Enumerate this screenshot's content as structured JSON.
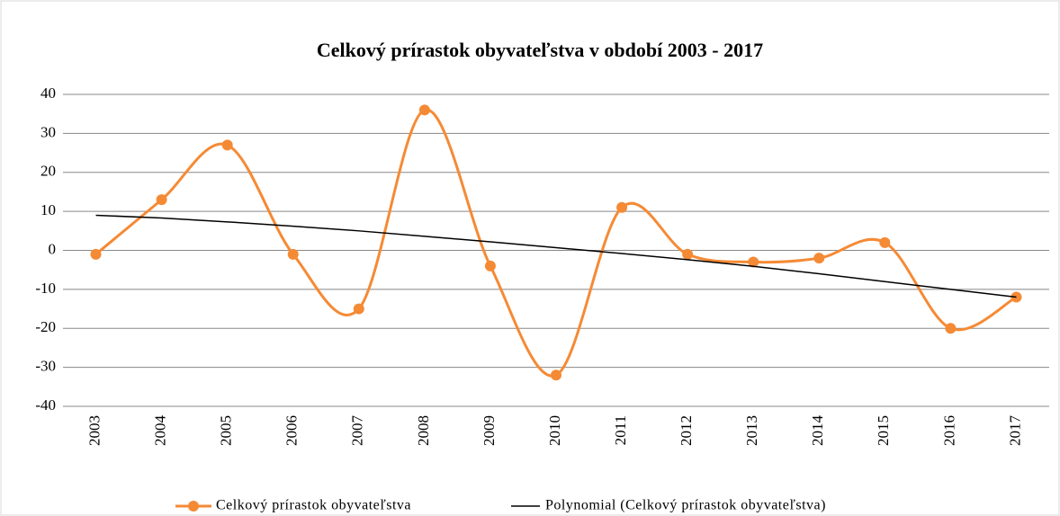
{
  "chart_data": {
    "type": "line",
    "title": "Celkový prírastok obyvateľstva v období 2003 - 2017",
    "categories": [
      "2003",
      "2004",
      "2005",
      "2006",
      "2007",
      "2008",
      "2009",
      "2010",
      "2011",
      "2012",
      "2013",
      "2014",
      "2015",
      "2016",
      "2017"
    ],
    "series": [
      {
        "name": "Celkový prírastok obyvateľstva",
        "color": "#f58a35",
        "values": [
          -1,
          13,
          27,
          -1,
          -15,
          36,
          -4,
          -32,
          11,
          -1,
          -3,
          -2,
          2,
          -20,
          -12
        ]
      },
      {
        "name": "Polynomial (Celkový prírastok obyvateľstva)",
        "color": "#000000",
        "values": [
          9,
          8.3,
          7.3,
          6.2,
          5,
          3.6,
          2.2,
          0.7,
          -0.8,
          -2.4,
          -4.1,
          -6,
          -8,
          -10,
          -12
        ]
      }
    ],
    "ylim": [
      -40,
      40
    ],
    "yticks": [
      -40,
      -30,
      -20,
      -10,
      0,
      10,
      20,
      30,
      40
    ],
    "grid": true,
    "legend": "bottom"
  }
}
